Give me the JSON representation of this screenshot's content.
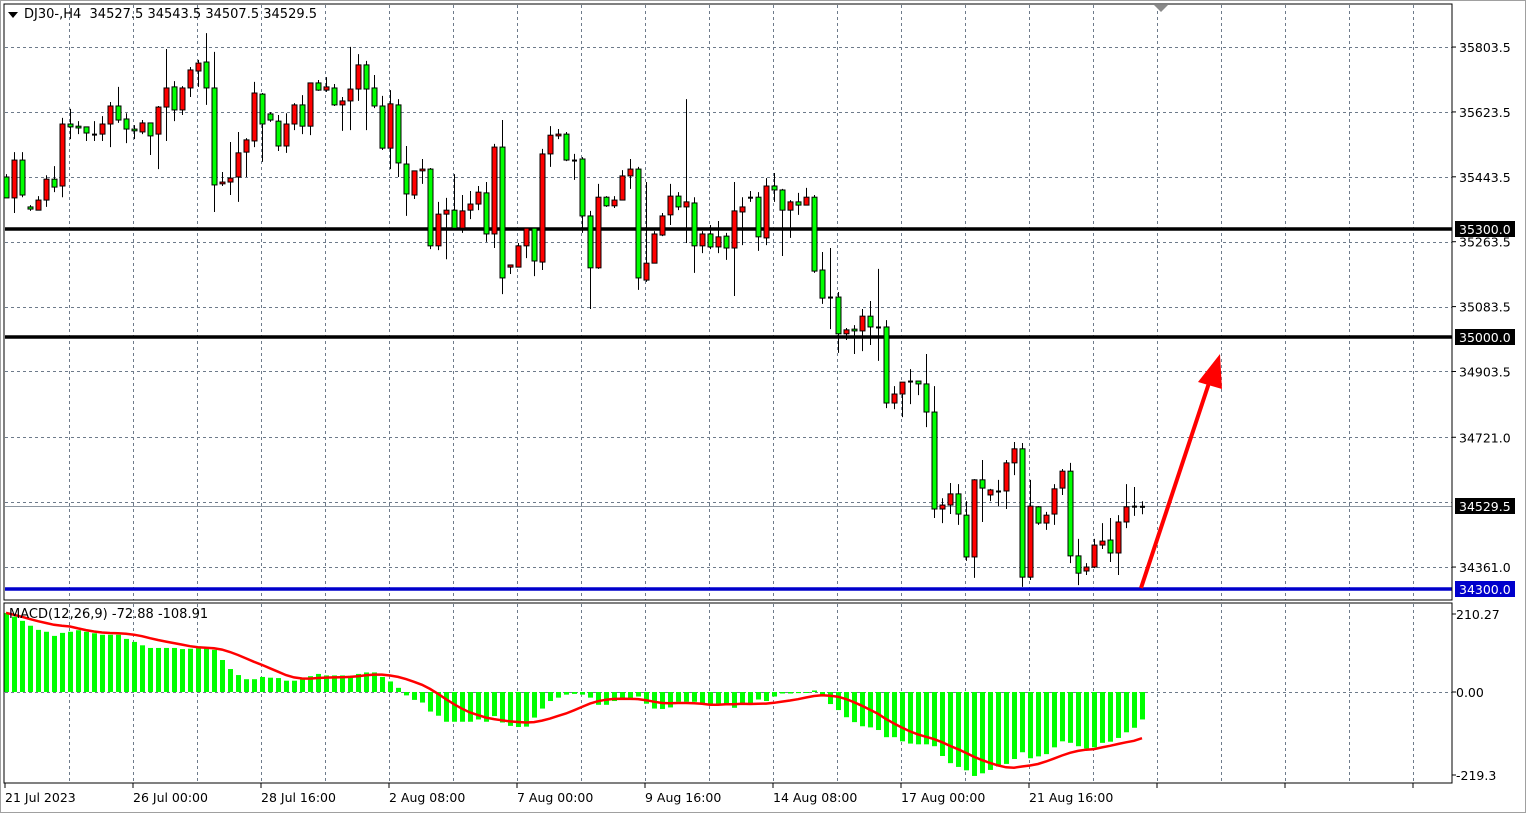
{
  "header": {
    "symbol": "DJ30-,H4",
    "open": "34527.5",
    "high": "34543.5",
    "low": "34507.5",
    "close": "34529.5"
  },
  "macd_label": {
    "name": "MACD(12,26,9)",
    "main": "-72.88",
    "signal": "-108.91"
  },
  "colors": {
    "bull": "#ff0000",
    "bear": "#00ff00",
    "grid": "#6e7b8b",
    "support": "#0000cc",
    "resistance": "#000000",
    "signal": "#ff0000",
    "arrow": "#ff0000"
  },
  "chart_data": [
    {
      "type": "candlestick",
      "timeframe": "H4",
      "price_ticks": [
        "35803.5",
        "35623.5",
        "35443.5",
        "35263.5",
        "35083.5",
        "34903.5",
        "34721.0",
        "34361.0"
      ],
      "time_labels": [
        "21 Jul 2023",
        "26 Jul 00:00",
        "28 Jul 16:00",
        "2 Aug 08:00",
        "7 Aug 00:00",
        "9 Aug 16:00",
        "14 Aug 08:00",
        "17 Aug 00:00",
        "21 Aug 16:00"
      ],
      "horizontal_lines": [
        {
          "price": 35300.0,
          "label": "35300.0",
          "color": "#000000"
        },
        {
          "price": 35000.0,
          "label": "35000.0",
          "color": "#000000"
        },
        {
          "price": 34300.0,
          "label": "34300.0",
          "color": "#0000cc"
        }
      ],
      "current_price": {
        "price": 34529.5,
        "label": "34529.5"
      },
      "ylim": [
        34270,
        35923
      ],
      "grid": true,
      "candles_ohlc": [
        [
          35443,
          35451,
          35385,
          35385
        ],
        [
          35385,
          35512,
          35343,
          35490
        ],
        [
          35490,
          35512,
          35387,
          35393
        ],
        [
          35360,
          35365,
          35349,
          35354
        ],
        [
          35351,
          35390,
          35351,
          35379
        ],
        [
          35379,
          35448,
          35360,
          35437
        ],
        [
          35437,
          35473,
          35401,
          35415
        ],
        [
          35418,
          35607,
          35387,
          35590
        ],
        [
          35590,
          35632,
          35548,
          35582
        ],
        [
          35584,
          35598,
          35562,
          35579
        ],
        [
          35582,
          35582,
          35543,
          35565
        ],
        [
          35562,
          35598,
          35543,
          35562
        ],
        [
          35562,
          35612,
          35543,
          35590
        ],
        [
          35590,
          35651,
          35526,
          35640
        ],
        [
          35640,
          35693,
          35593,
          35601
        ],
        [
          35604,
          35620,
          35537,
          35576
        ],
        [
          35576,
          35587,
          35548,
          35571
        ],
        [
          35568,
          35601,
          35562,
          35593
        ],
        [
          35593,
          35593,
          35504,
          35557
        ],
        [
          35562,
          35640,
          35465,
          35637
        ],
        [
          35637,
          35798,
          35543,
          35690
        ],
        [
          35693,
          35709,
          35598,
          35629
        ],
        [
          35629,
          35695,
          35615,
          35690
        ],
        [
          35690,
          35748,
          35665,
          35740
        ],
        [
          35737,
          35768,
          35693,
          35759
        ],
        [
          35762,
          35842,
          35643,
          35690
        ],
        [
          35690,
          35790,
          35346,
          35421
        ],
        [
          35424,
          35457,
          35418,
          35429
        ],
        [
          35429,
          35540,
          35393,
          35440
        ],
        [
          35443,
          35568,
          35374,
          35510
        ],
        [
          35512,
          35551,
          35443,
          35546
        ],
        [
          35543,
          35707,
          35526,
          35676
        ],
        [
          35673,
          35676,
          35485,
          35590
        ],
        [
          35618,
          35623,
          35596,
          35601
        ],
        [
          35598,
          35615,
          35515,
          35529
        ],
        [
          35529,
          35620,
          35510,
          35590
        ],
        [
          35590,
          35648,
          35573,
          35643
        ],
        [
          35643,
          35670,
          35562,
          35584
        ],
        [
          35584,
          35704,
          35559,
          35704
        ],
        [
          35704,
          35712,
          35682,
          35684
        ],
        [
          35684,
          35720,
          35679,
          35693
        ],
        [
          35690,
          35701,
          35640,
          35643
        ],
        [
          35643,
          35665,
          35571,
          35654
        ],
        [
          35654,
          35804,
          35573,
          35687
        ],
        [
          35687,
          35784,
          35654,
          35754
        ],
        [
          35754,
          35765,
          35573,
          35687
        ],
        [
          35690,
          35726,
          35634,
          35640
        ],
        [
          35640,
          35668,
          35518,
          35523
        ],
        [
          35523,
          35684,
          35465,
          35646
        ],
        [
          35643,
          35659,
          35443,
          35482
        ],
        [
          35479,
          35529,
          35335,
          35396
        ],
        [
          35393,
          35460,
          35382,
          35460
        ],
        [
          35460,
          35493,
          35424,
          35465
        ],
        [
          35465,
          35468,
          35243,
          35252
        ],
        [
          35252,
          35374,
          35240,
          35340
        ],
        [
          35340,
          35385,
          35215,
          35351
        ],
        [
          35351,
          35451,
          35301,
          35301
        ],
        [
          35301,
          35393,
          35288,
          35349
        ],
        [
          35351,
          35404,
          35326,
          35368
        ],
        [
          35368,
          35418,
          35351,
          35401
        ],
        [
          35399,
          35429,
          35263,
          35285
        ],
        [
          35285,
          35535,
          35246,
          35526
        ],
        [
          35526,
          35601,
          35118,
          35163
        ],
        [
          35193,
          35199,
          35174,
          35199
        ],
        [
          35193,
          35260,
          35193,
          35252
        ],
        [
          35252,
          35301,
          35218,
          35301
        ],
        [
          35301,
          35301,
          35168,
          35210
        ],
        [
          35207,
          35521,
          35185,
          35507
        ],
        [
          35507,
          35584,
          35471,
          35559
        ],
        [
          35557,
          35576,
          35548,
          35562
        ],
        [
          35562,
          35568,
          35487,
          35490
        ],
        [
          35490,
          35507,
          35435,
          35490
        ],
        [
          35493,
          35498,
          35288,
          35335
        ],
        [
          35335,
          35349,
          35077,
          35191
        ],
        [
          35191,
          35424,
          35188,
          35387
        ],
        [
          35387,
          35390,
          35360,
          35363
        ],
        [
          35363,
          35390,
          35357,
          35379
        ],
        [
          35379,
          35462,
          35379,
          35446
        ],
        [
          35446,
          35493,
          35410,
          35465
        ],
        [
          35465,
          35471,
          35130,
          35163
        ],
        [
          35157,
          35429,
          35152,
          35204
        ],
        [
          35204,
          35293,
          35204,
          35285
        ],
        [
          35282,
          35343,
          35279,
          35335
        ],
        [
          35338,
          35424,
          35310,
          35390
        ],
        [
          35390,
          35401,
          35351,
          35360
        ],
        [
          35360,
          35659,
          35260,
          35374
        ],
        [
          35371,
          35387,
          35177,
          35252
        ],
        [
          35252,
          35293,
          35232,
          35285
        ],
        [
          35285,
          35310,
          35243,
          35249
        ],
        [
          35249,
          35321,
          35232,
          35277
        ],
        [
          35279,
          35288,
          35213,
          35246
        ],
        [
          35246,
          35429,
          35113,
          35349
        ],
        [
          35346,
          35387,
          35254,
          35360
        ],
        [
          35387,
          35404,
          35374,
          35387
        ],
        [
          35387,
          35401,
          35238,
          35277
        ],
        [
          35274,
          35440,
          35254,
          35418
        ],
        [
          35418,
          35454,
          35374,
          35407
        ],
        [
          35407,
          35410,
          35224,
          35351
        ],
        [
          35351,
          35379,
          35274,
          35374
        ],
        [
          35374,
          35399,
          35338,
          35365
        ],
        [
          35365,
          35413,
          35365,
          35387
        ],
        [
          35387,
          35393,
          35177,
          35182
        ],
        [
          35185,
          35235,
          35091,
          35107
        ],
        [
          35110,
          35246,
          35021,
          35110
        ],
        [
          35110,
          35124,
          34955,
          35008
        ],
        [
          35008,
          35024,
          34991,
          35019
        ],
        [
          35021,
          35032,
          34952,
          35016
        ],
        [
          35016,
          35077,
          34960,
          35057
        ],
        [
          35057,
          35099,
          34977,
          35027
        ],
        [
          35027,
          35188,
          34933,
          35027
        ],
        [
          35027,
          35046,
          34802,
          34816
        ],
        [
          34816,
          34863,
          34799,
          34841
        ],
        [
          34841,
          34874,
          34777,
          34874
        ],
        [
          34877,
          34910,
          34813,
          34877
        ],
        [
          34877,
          34877,
          34838,
          34869
        ],
        [
          34869,
          34952,
          34749,
          34791
        ],
        [
          34791,
          34863,
          34497,
          34522
        ],
        [
          34522,
          34552,
          34483,
          34533
        ],
        [
          34533,
          34594,
          34508,
          34564
        ],
        [
          34564,
          34591,
          34478,
          34508
        ],
        [
          34505,
          34544,
          34378,
          34389
        ],
        [
          34389,
          34605,
          34331,
          34603
        ],
        [
          34603,
          34658,
          34486,
          34580
        ],
        [
          34561,
          34578,
          34544,
          34575
        ],
        [
          34572,
          34603,
          34530,
          34572
        ],
        [
          34572,
          34658,
          34522,
          34650
        ],
        [
          34650,
          34708,
          34616,
          34689
        ],
        [
          34689,
          34705,
          34306,
          34333
        ],
        [
          34333,
          34603,
          34325,
          34530
        ],
        [
          34528,
          34530,
          34478,
          34483
        ],
        [
          34483,
          34514,
          34464,
          34505
        ],
        [
          34508,
          34591,
          34478,
          34578
        ],
        [
          34580,
          34633,
          34561,
          34627
        ],
        [
          34627,
          34650,
          34372,
          34392
        ],
        [
          34392,
          34439,
          34311,
          34344
        ],
        [
          34350,
          34372,
          34339,
          34361
        ],
        [
          34361,
          34439,
          34358,
          34422
        ],
        [
          34422,
          34483,
          34411,
          34433
        ],
        [
          34436,
          34497,
          34375,
          34400
        ],
        [
          34400,
          34505,
          34339,
          34486
        ],
        [
          34486,
          34591,
          34469,
          34528
        ],
        [
          34530,
          34583,
          34503,
          34530
        ],
        [
          34527.5,
          34543.5,
          34507.5,
          34529.5
        ]
      ]
    },
    {
      "type": "bar",
      "indicator": "MACD(12,26,9)",
      "axis_ticks": [
        "210.27",
        "0.00",
        "-219.3"
      ],
      "ylim": [
        -219.3,
        210.27
      ],
      "histogram": [
        210,
        200,
        189,
        176,
        165,
        160,
        149,
        157,
        160,
        164,
        160,
        156,
        152,
        152,
        152,
        141,
        133,
        124,
        117,
        117,
        117,
        117,
        114,
        115,
        118,
        118,
        112,
        85,
        61,
        45,
        34,
        34,
        40,
        38,
        37,
        30,
        30,
        35,
        42,
        48,
        44,
        44,
        44,
        43,
        48,
        52,
        52,
        40,
        28,
        11,
        -9,
        -21,
        -28,
        -52,
        -63,
        -79,
        -79,
        -79,
        -79,
        -73,
        -79,
        -64,
        -81,
        -90,
        -93,
        -92,
        -68,
        -44,
        -24,
        -15,
        -7,
        -5,
        -7,
        -15,
        -34,
        -34,
        -24,
        -21,
        -18,
        -12,
        -31,
        -44,
        -45,
        -41,
        -26,
        -26,
        -26,
        -32,
        -32,
        -32,
        -34,
        -42,
        -31,
        -31,
        -20,
        -24,
        -12,
        -4,
        -4,
        -3,
        -2,
        4,
        -12,
        -32,
        -48,
        -67,
        -80,
        -91,
        -94,
        -101,
        -120,
        -120,
        -131,
        -137,
        -139,
        -139,
        -144,
        -170,
        -189,
        -199,
        -208,
        -223,
        -216,
        -207,
        -198,
        -191,
        -178,
        -160,
        -176,
        -171,
        -165,
        -147,
        -131,
        -135,
        -144,
        -150,
        -147,
        -135,
        -132,
        -122,
        -107,
        -95,
        -72.88
      ]
    }
  ]
}
